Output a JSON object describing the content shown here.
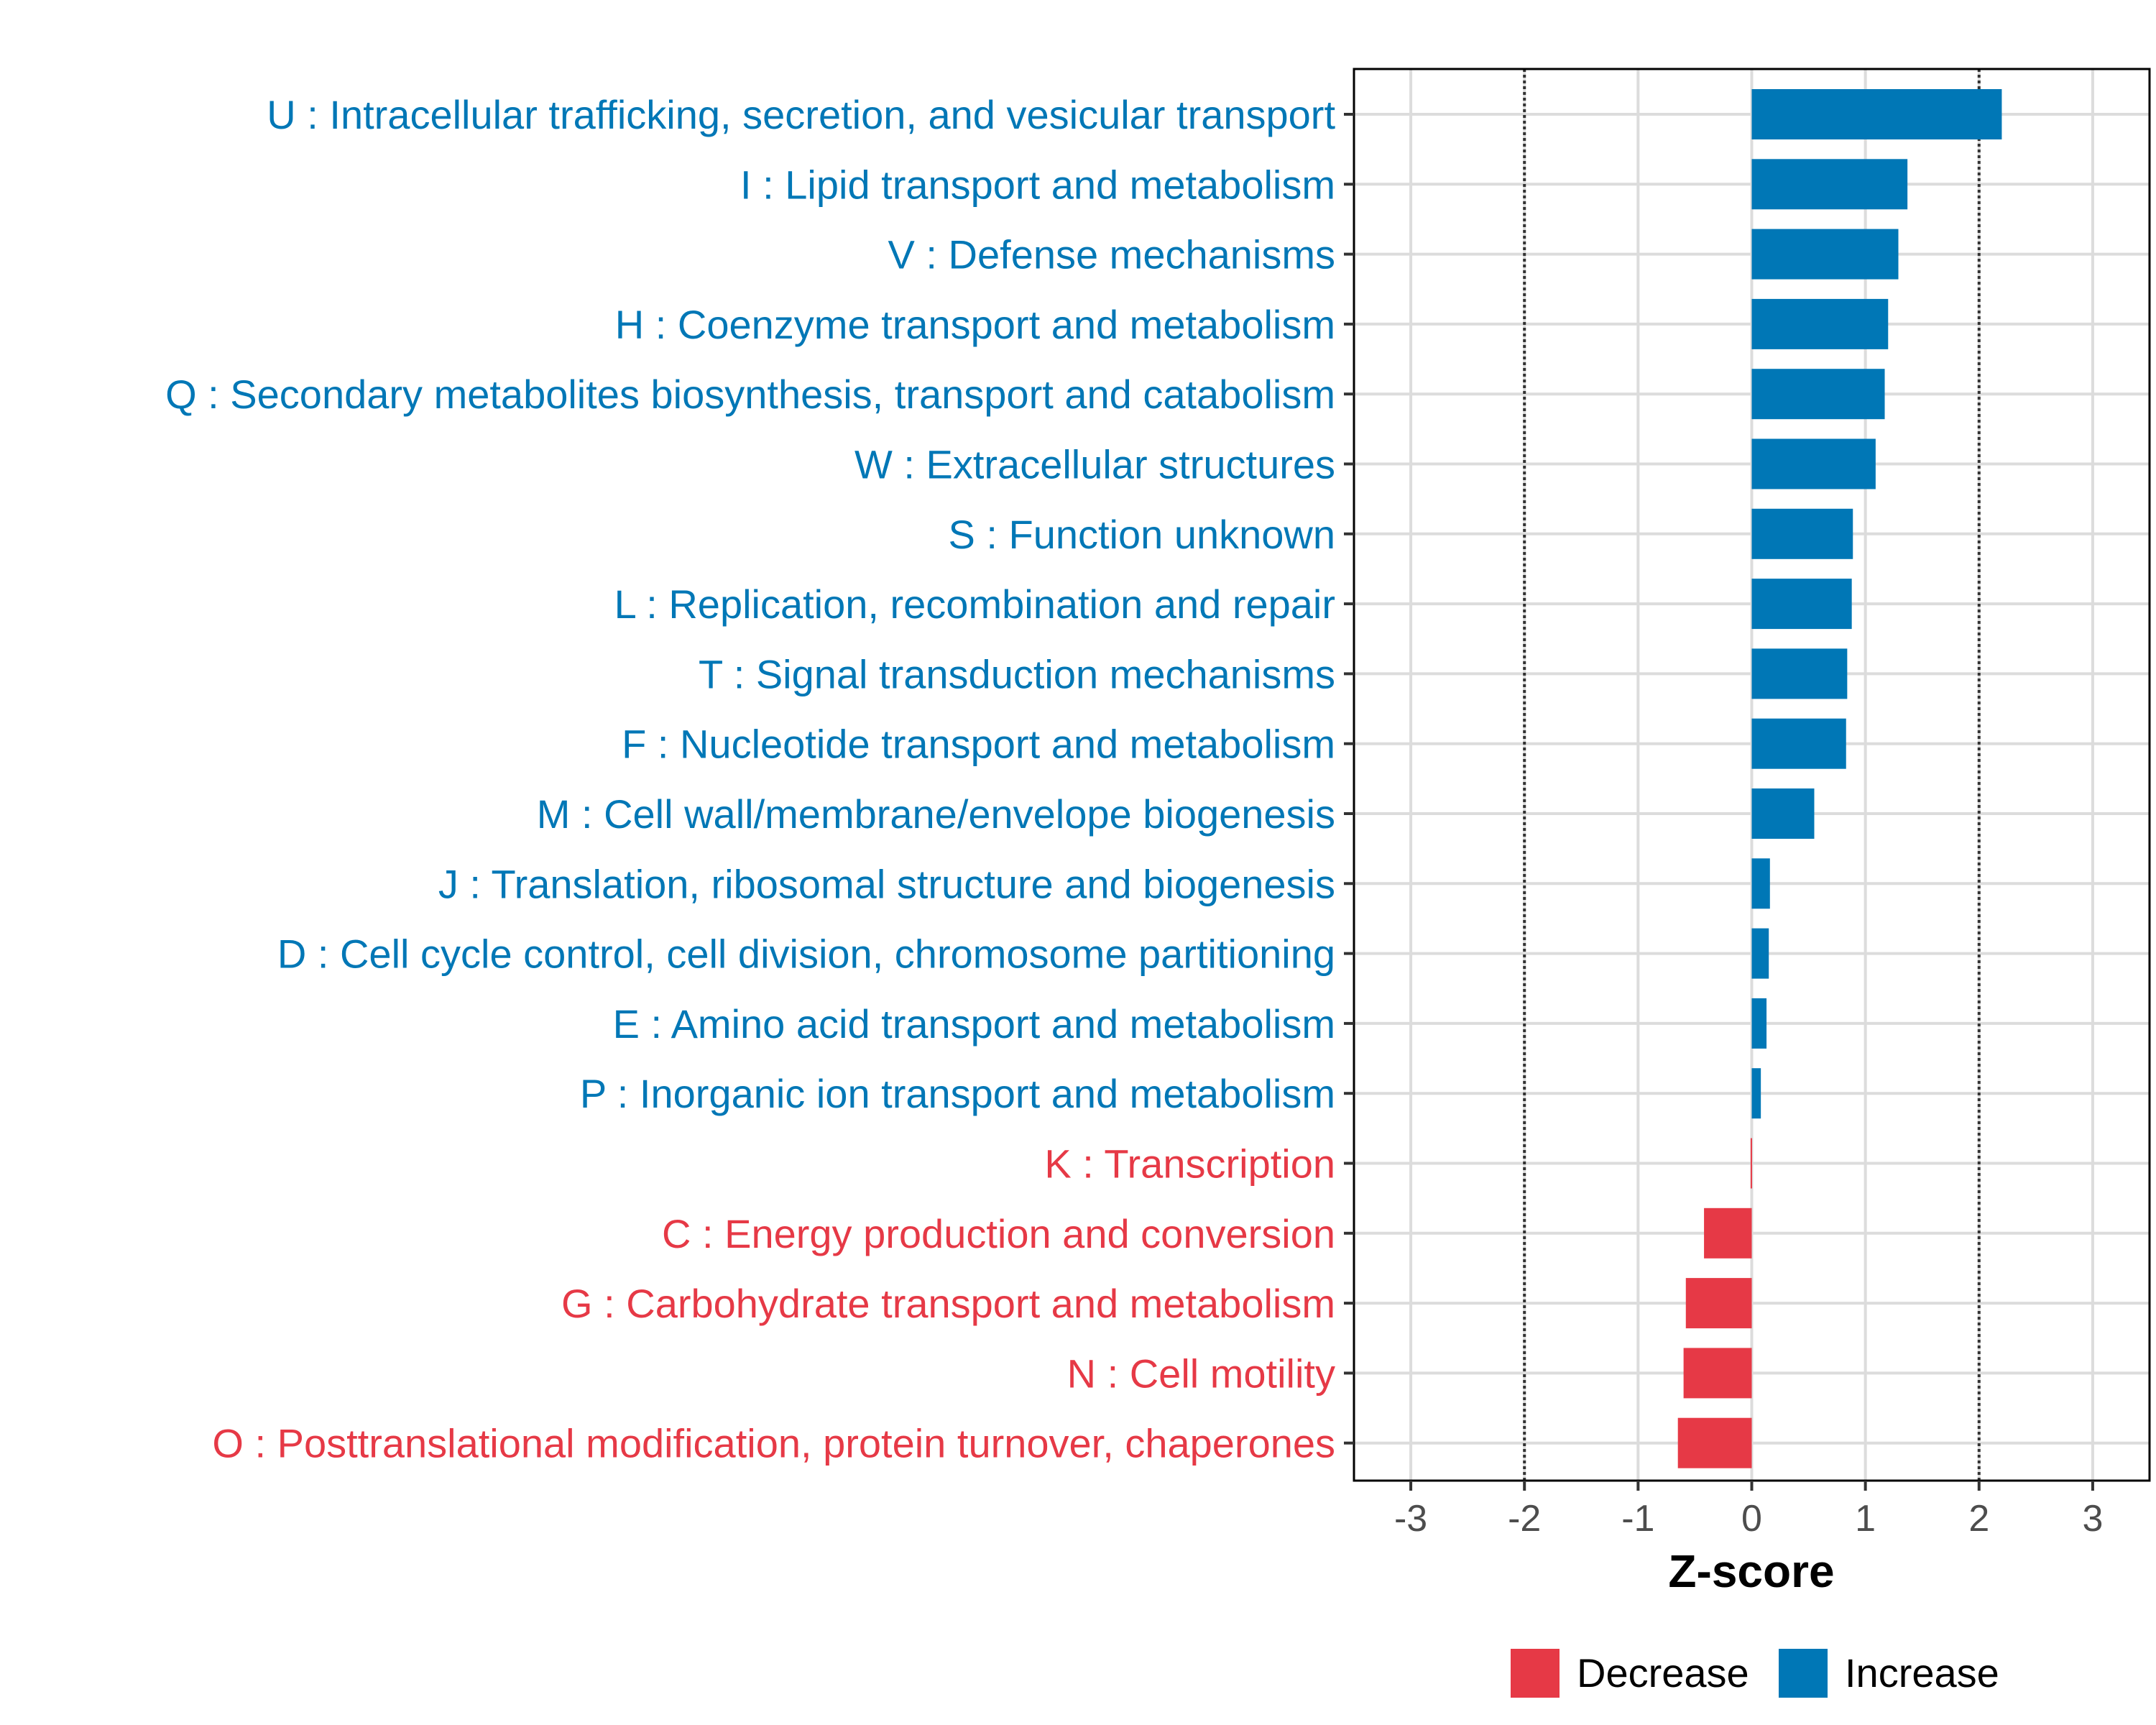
{
  "chart_data": {
    "type": "bar",
    "orientation": "horizontal",
    "xlabel": "Z-score",
    "xlim": [
      -3.5,
      3.5
    ],
    "xticks": [
      -3,
      -2,
      -1,
      0,
      1,
      2,
      3
    ],
    "xtick_labels": [
      "-3",
      "-2",
      "-1",
      "0",
      "1",
      "2",
      "3"
    ],
    "reference_lines": [
      -2,
      2
    ],
    "grid": true,
    "categories": [
      "U : Intracellular trafficking, secretion, and vesicular transport",
      "I : Lipid transport and metabolism",
      "V : Defense mechanisms",
      "H : Coenzyme transport and metabolism",
      "Q : Secondary metabolites biosynthesis, transport and catabolism",
      "W : Extracellular structures",
      "S : Function unknown",
      "L : Replication, recombination and repair",
      "T : Signal transduction mechanisms",
      "F : Nucleotide transport and metabolism",
      "M : Cell wall/membrane/envelope biogenesis",
      "J : Translation, ribosomal structure and biogenesis",
      "D : Cell cycle control, cell division, chromosome partitioning",
      "E : Amino acid transport and metabolism",
      "P : Inorganic ion transport and metabolism",
      "K : Transcription",
      "C : Energy production and conversion",
      "G : Carbohydrate transport and metabolism",
      "N : Cell motility",
      "O : Posttranslational modification, protein turnover, chaperones"
    ],
    "values": [
      2.2,
      1.37,
      1.29,
      1.2,
      1.17,
      1.09,
      0.89,
      0.88,
      0.84,
      0.83,
      0.55,
      0.16,
      0.15,
      0.13,
      0.08,
      -0.01,
      -0.42,
      -0.58,
      -0.6,
      -0.65
    ],
    "groups": [
      "Increase",
      "Increase",
      "Increase",
      "Increase",
      "Increase",
      "Increase",
      "Increase",
      "Increase",
      "Increase",
      "Increase",
      "Increase",
      "Increase",
      "Increase",
      "Increase",
      "Increase",
      "Decrease",
      "Decrease",
      "Decrease",
      "Decrease",
      "Decrease"
    ],
    "legend": {
      "position": "bottom",
      "entries": [
        {
          "label": "Decrease",
          "color": "#E63946"
        },
        {
          "label": "Increase",
          "color": "#0077B6"
        }
      ]
    },
    "colors": {
      "Decrease": "#E63946",
      "Increase": "#0077B6"
    }
  }
}
